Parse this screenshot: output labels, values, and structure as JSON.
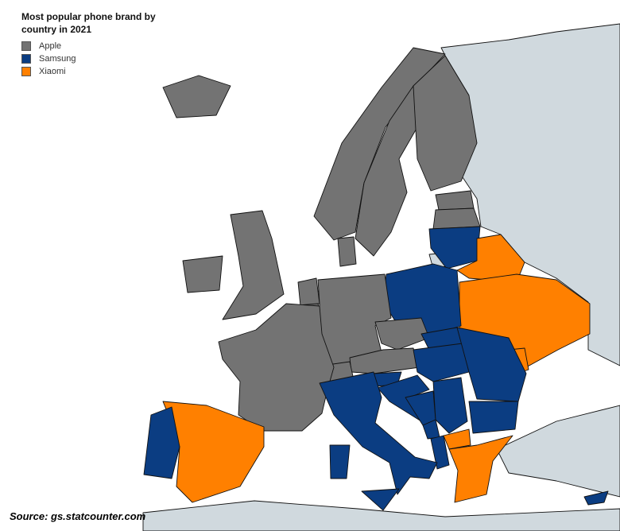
{
  "title": "Most popular phone brand by country in 2021",
  "legend": [
    {
      "label": "Apple",
      "color": "#737373"
    },
    {
      "label": "Samsung",
      "color": "#0b3d82"
    },
    {
      "label": "Xiaomi",
      "color": "#ff8000"
    }
  ],
  "no_data_color": "#d0d9de",
  "source": "Source: gs.statcounter.com",
  "country_brands": {
    "Iceland": "Apple",
    "Norway": "Apple",
    "Sweden": "Apple",
    "Finland": "Apple",
    "Estonia": "Apple",
    "Latvia": "Apple",
    "United Kingdom": "Apple",
    "Ireland": "Apple",
    "Germany": "Apple",
    "France": "Apple",
    "Netherlands": "Apple",
    "Belgium": "Apple",
    "Denmark": "Apple",
    "Switzerland": "Apple",
    "Austria": "Apple",
    "Czechia": "Apple",
    "Lithuania": "Samsung",
    "Poland": "Samsung",
    "Italy": "Samsung",
    "Portugal": "Samsung",
    "Slovakia": "Samsung",
    "Hungary": "Samsung",
    "Romania": "Samsung",
    "Bulgaria": "Samsung",
    "Serbia": "Samsung",
    "Croatia": "Samsung",
    "Bosnia and Herzegovina": "Samsung",
    "Slovenia": "Samsung",
    "Montenegro": "Samsung",
    "Albania": "Samsung",
    "Cyprus": "Samsung",
    "Belarus": "Xiaomi",
    "Ukraine": "Xiaomi",
    "Moldova": "Xiaomi",
    "Spain": "Xiaomi",
    "North Macedonia": "Xiaomi",
    "Greece": "Xiaomi"
  }
}
